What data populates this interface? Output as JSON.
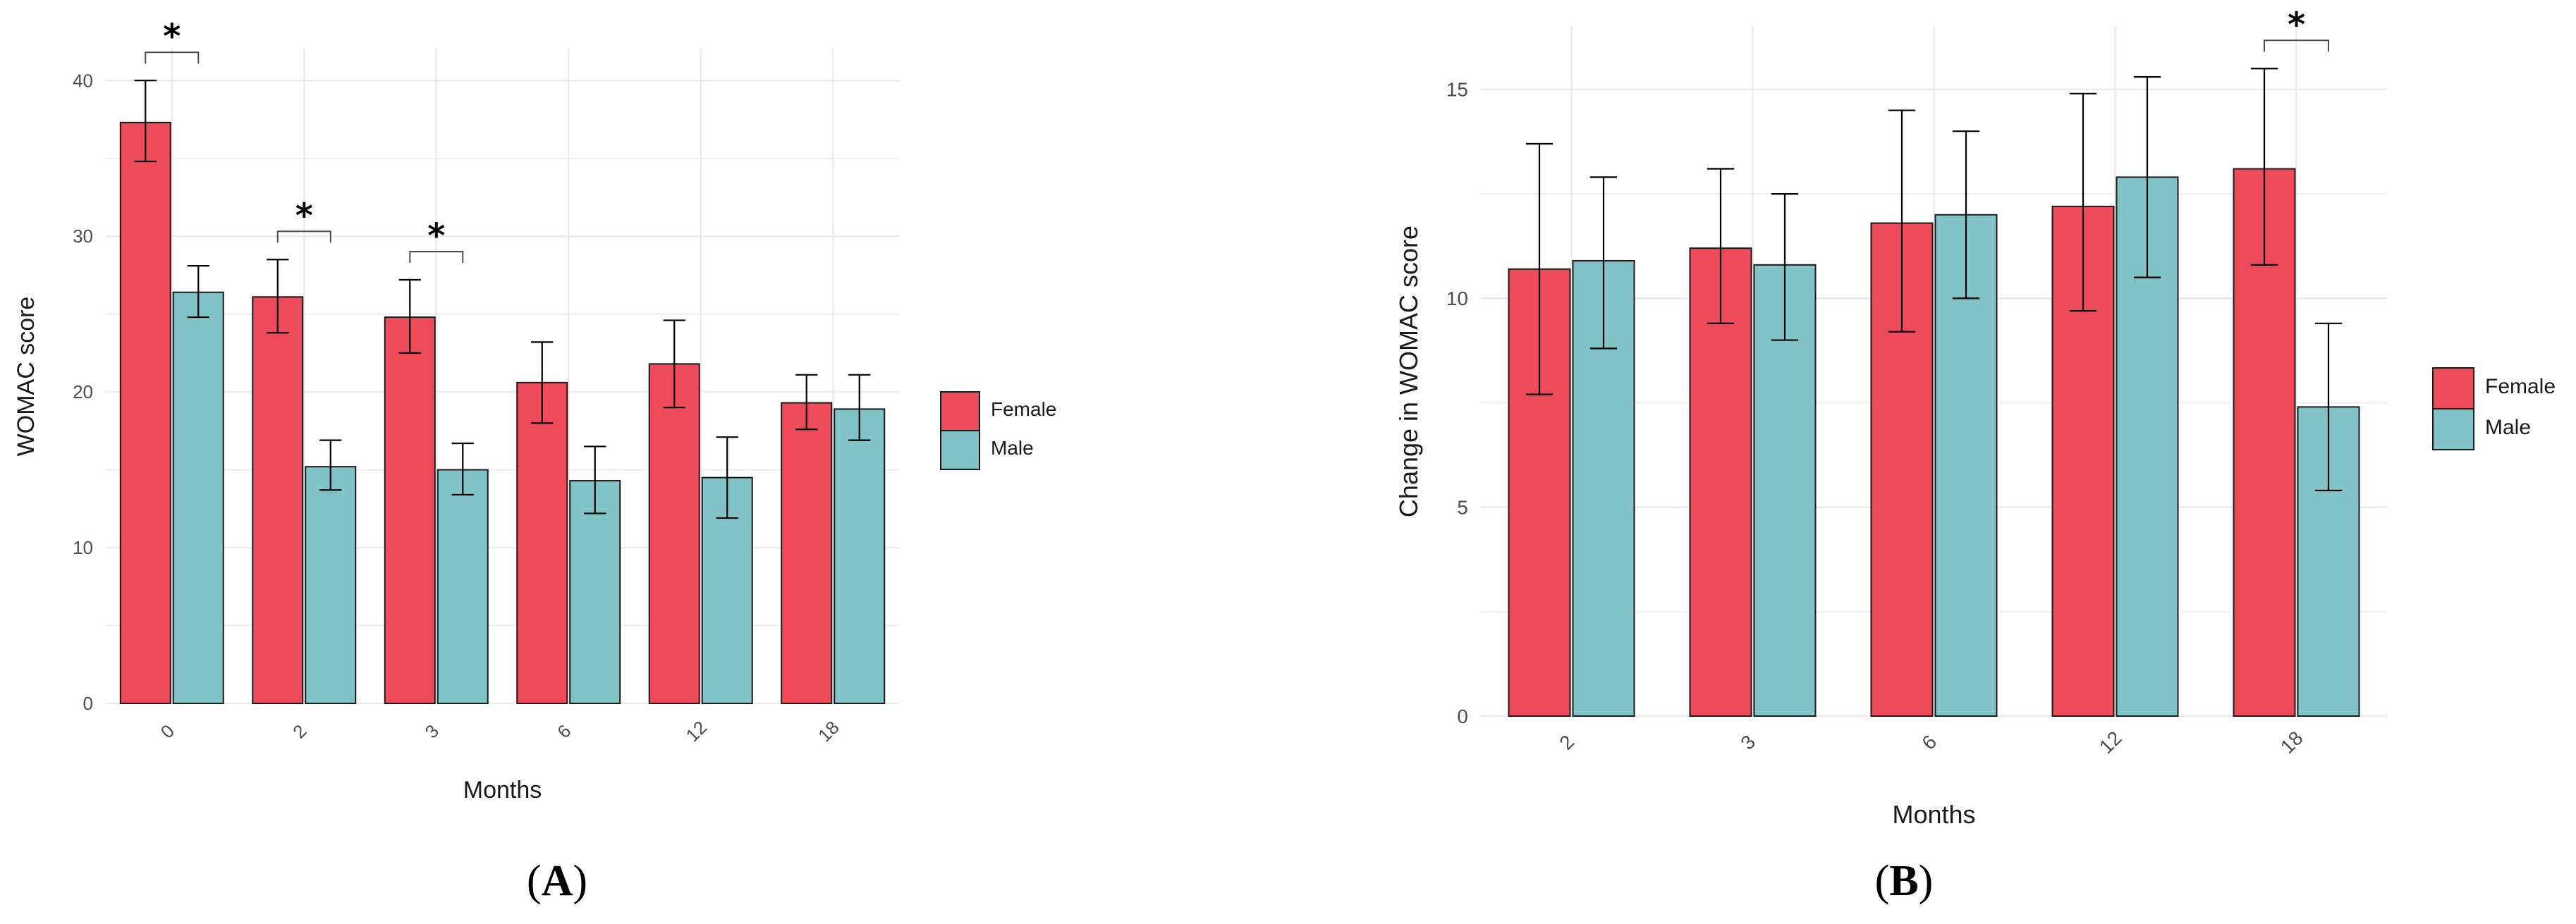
{
  "colors": {
    "female": "#ee4b5a",
    "male": "#82c3c8",
    "grid": "#ebebeb",
    "bar_stroke": "#1a1a1a"
  },
  "chart_data": [
    {
      "id": "A",
      "type": "bar",
      "panel_label": "A",
      "xlabel": "Months",
      "ylabel": "WOMAC score",
      "categories": [
        "0",
        "2",
        "3",
        "6",
        "12",
        "18"
      ],
      "ylim": [
        0,
        42
      ],
      "yticks": [
        0,
        10,
        20,
        30,
        40
      ],
      "legend_position": "right",
      "series": [
        {
          "name": "Female",
          "values": [
            37.3,
            26.1,
            24.8,
            20.6,
            21.8,
            19.3
          ],
          "err_low": [
            34.8,
            23.8,
            22.5,
            18.0,
            19.0,
            17.6
          ],
          "err_high": [
            40.0,
            28.5,
            27.2,
            23.2,
            24.6,
            21.1
          ]
        },
        {
          "name": "Male",
          "values": [
            26.4,
            15.2,
            15.0,
            14.3,
            14.5,
            18.9
          ],
          "err_low": [
            24.8,
            13.7,
            13.4,
            12.2,
            11.9,
            16.9
          ],
          "err_high": [
            28.1,
            16.9,
            16.7,
            16.5,
            17.1,
            21.1
          ]
        }
      ],
      "significance": [
        {
          "category_index": 0,
          "label": "*"
        },
        {
          "category_index": 1,
          "label": "*"
        },
        {
          "category_index": 2,
          "label": "*"
        }
      ]
    },
    {
      "id": "B",
      "type": "bar",
      "panel_label": "B",
      "xlabel": "Months",
      "ylabel": "Change in WOMAC score",
      "categories": [
        "2",
        "3",
        "6",
        "12",
        "18"
      ],
      "ylim": [
        0,
        16.5
      ],
      "yticks": [
        0,
        5,
        10,
        15
      ],
      "legend_position": "right",
      "series": [
        {
          "name": "Female",
          "values": [
            10.7,
            11.2,
            11.8,
            12.2,
            13.1
          ],
          "err_low": [
            7.7,
            9.4,
            9.2,
            9.7,
            10.8
          ],
          "err_high": [
            13.7,
            13.1,
            14.5,
            14.9,
            15.5
          ]
        },
        {
          "name": "Male",
          "values": [
            10.9,
            10.8,
            12.0,
            12.9,
            7.4
          ],
          "err_low": [
            8.8,
            9.0,
            10.0,
            10.5,
            5.4
          ],
          "err_high": [
            12.9,
            12.5,
            14.0,
            15.3,
            9.4
          ]
        }
      ],
      "significance": [
        {
          "category_index": 4,
          "label": "*"
        }
      ]
    }
  ]
}
